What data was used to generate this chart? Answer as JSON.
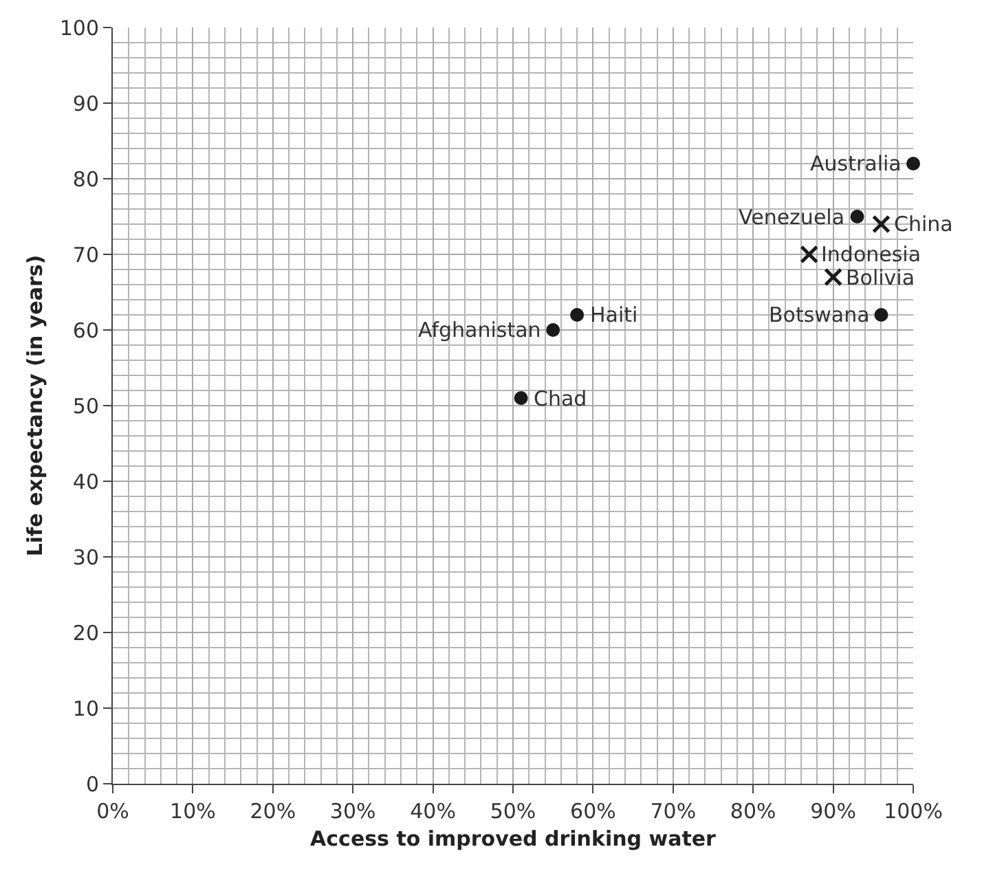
{
  "chart_data": {
    "type": "scatter",
    "xlabel": "Access to improved drinking water",
    "ylabel": "Life expectancy (in years)",
    "xlim": [
      0,
      100
    ],
    "ylim": [
      0,
      100
    ],
    "xticks": [
      {
        "value": 0,
        "label": "0%"
      },
      {
        "value": 10,
        "label": "10%"
      },
      {
        "value": 20,
        "label": "20%"
      },
      {
        "value": 30,
        "label": "30%"
      },
      {
        "value": 40,
        "label": "40%"
      },
      {
        "value": 50,
        "label": "50%"
      },
      {
        "value": 60,
        "label": "60%"
      },
      {
        "value": 70,
        "label": "70%"
      },
      {
        "value": 80,
        "label": "80%"
      },
      {
        "value": 90,
        "label": "90%"
      },
      {
        "value": 100,
        "label": "100%"
      }
    ],
    "yticks": [
      0,
      10,
      20,
      30,
      40,
      50,
      60,
      70,
      80,
      90,
      100
    ],
    "grid": true,
    "series": [
      {
        "color": "#1a1a1a",
        "marker": "circle",
        "x": [
          55,
          58,
          51,
          100,
          93,
          96
        ],
        "values": [
          60,
          62,
          51,
          82,
          75,
          62
        ]
      },
      {
        "color": "#1a1a1a",
        "marker": "cross",
        "x": [
          96,
          87,
          90
        ],
        "values": [
          74,
          70,
          67
        ]
      }
    ],
    "annotations": [
      {
        "text": "Afghanistan",
        "x": 55,
        "y": 60
      },
      {
        "text": "Haiti",
        "x": 58,
        "y": 62
      },
      {
        "text": "Chad",
        "x": 51,
        "y": 51
      },
      {
        "text": "Australia",
        "x": 100,
        "y": 82
      },
      {
        "text": "Venezuela",
        "x": 93,
        "y": 75
      },
      {
        "text": "China",
        "x": 96,
        "y": 74
      },
      {
        "text": "Indonesia",
        "x": 87,
        "y": 70
      },
      {
        "text": "Bolivia",
        "x": 90,
        "y": 67
      },
      {
        "text": "Botswana",
        "x": 96,
        "y": 62
      }
    ]
  }
}
